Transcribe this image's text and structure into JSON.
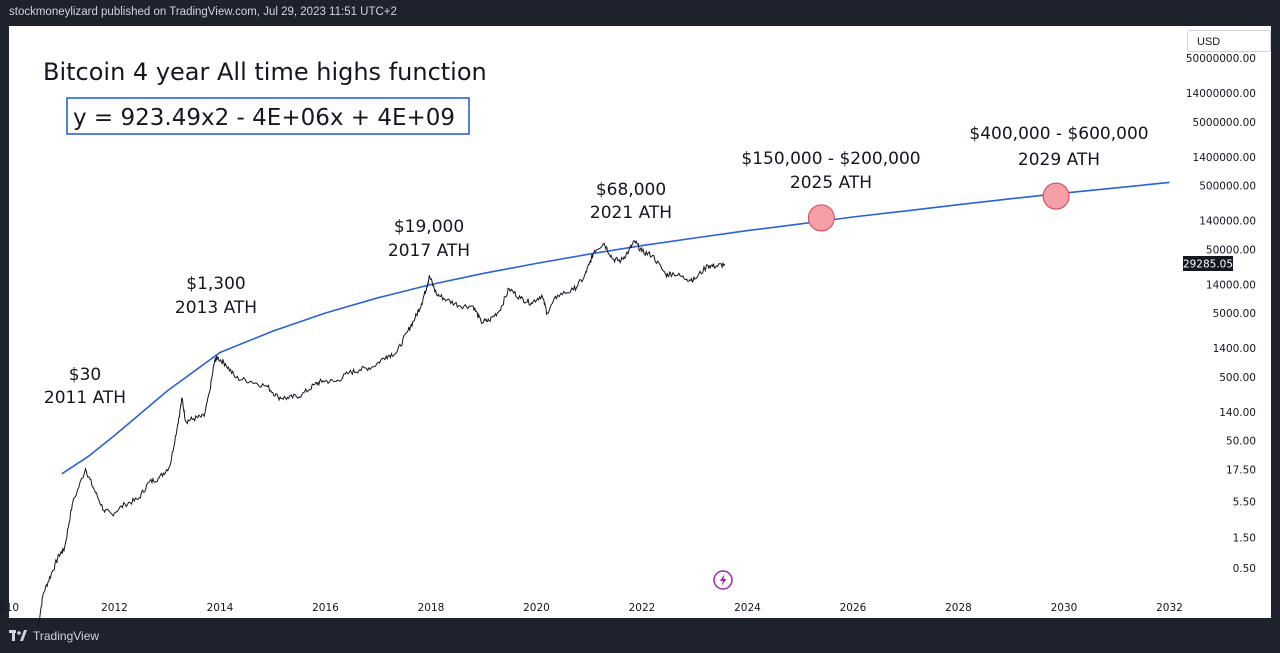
{
  "header": {
    "publisher_line": "stockmoneylizard published on TradingView.com, Jul 29, 2023 11:51 UTC+2"
  },
  "footer": {
    "brand": "TradingView"
  },
  "currency_selector": {
    "value": "USD"
  },
  "chart_data": {
    "type": "line",
    "title": "Bitcoin 4 year All time highs function",
    "equation": "y = 923.49x2 - 4E+06x + 4E+09",
    "y_scale": "log",
    "xlim": [
      2010,
      2032
    ],
    "x_tick_labels": [
      "010",
      "2012",
      "2014",
      "2016",
      "2018",
      "2020",
      "2022",
      "2024",
      "2026",
      "2028",
      "2030",
      "2032"
    ],
    "y_tick_labels": [
      "50000000.00",
      "14000000.00",
      "5000000.00",
      "1400000.00",
      "500000.00",
      "140000.00",
      "50000.00",
      "14000.00",
      "5000.00",
      "1400.00",
      "500.00",
      "140.00",
      "50.00",
      "17.50",
      "5.50",
      "1.50",
      "0.50"
    ],
    "y_tick_values": [
      50000000,
      14000000,
      5000000,
      1400000,
      500000,
      140000,
      50000,
      14000,
      5000,
      1400,
      500,
      140,
      50,
      17.5,
      5.5,
      1.5,
      0.5
    ],
    "last_price_label": "29285.05",
    "last_price": 29285.05,
    "grid": false,
    "series": [
      {
        "name": "",
        "color": "#2962d9",
        "x": [
          2011.0,
          2011.5,
          2012.0,
          2013.0,
          2014.0,
          2015.0,
          2016.0,
          2017.0,
          2018.0,
          2019.0,
          2020.0,
          2021.0,
          2022.0,
          2023.0,
          2024.0,
          2025.0,
          2026.0,
          2027.0,
          2028.0,
          2029.0,
          2030.0,
          2031.0,
          2032.0
        ],
        "values": [
          15,
          28,
          60,
          300,
          1200,
          2600,
          5000,
          8700,
          14000,
          21000,
          30000,
          42000,
          57000,
          75000,
          98000,
          125000,
          160000,
          200000,
          250000,
          310000,
          380000,
          460000,
          560000
        ]
      },
      {
        "name": "",
        "color": "#131722",
        "x": [
          2010.55,
          2010.65,
          2010.8,
          2010.95,
          2011.05,
          2011.2,
          2011.45,
          2011.6,
          2011.8,
          2011.95,
          2012.2,
          2012.45,
          2012.65,
          2012.85,
          2013.05,
          2013.2,
          2013.28,
          2013.35,
          2013.5,
          2013.7,
          2013.8,
          2013.9,
          2013.95,
          2014.1,
          2014.3,
          2014.6,
          2014.9,
          2015.1,
          2015.3,
          2015.55,
          2015.8,
          2015.95,
          2016.2,
          2016.45,
          2016.65,
          2016.9,
          2017.15,
          2017.35,
          2017.55,
          2017.7,
          2017.82,
          2017.92,
          2017.97,
          2018.1,
          2018.3,
          2018.55,
          2018.8,
          2018.95,
          2019.1,
          2019.3,
          2019.48,
          2019.7,
          2019.9,
          2020.1,
          2020.2,
          2020.4,
          2020.7,
          2020.9,
          2021.0,
          2021.1,
          2021.28,
          2021.45,
          2021.6,
          2021.75,
          2021.86,
          2022.0,
          2022.2,
          2022.45,
          2022.6,
          2022.85,
          2023.0,
          2023.25,
          2023.4,
          2023.57
        ],
        "values": [
          0.06,
          0.2,
          0.4,
          0.8,
          1.0,
          5,
          18,
          9,
          4,
          3.5,
          5,
          6,
          11,
          13,
          20,
          90,
          230,
          100,
          110,
          120,
          280,
          900,
          1000,
          800,
          480,
          420,
          350,
          240,
          230,
          260,
          380,
          430,
          420,
          580,
          640,
          720,
          1050,
          1200,
          2500,
          4200,
          7000,
          13000,
          19000,
          10000,
          8000,
          6500,
          6400,
          3600,
          3800,
          5500,
          12000,
          8500,
          7200,
          9500,
          5000,
          9500,
          11500,
          18000,
          29000,
          48000,
          62000,
          35000,
          33000,
          47000,
          67000,
          46000,
          40000,
          20000,
          21000,
          17000,
          17000,
          28000,
          27000,
          29285.05
        ]
      }
    ],
    "annotations": [
      {
        "label_price": "$30",
        "label_year": "2011 ATH"
      },
      {
        "label_price": "$1,300",
        "label_year": "2013 ATH"
      },
      {
        "label_price": "$19,000",
        "label_year": "2017 ATH"
      },
      {
        "label_price": "$68,000",
        "label_year": "2021 ATH"
      },
      {
        "label_price": "$150,000 - $200,000",
        "label_year": "2025 ATH",
        "marker_x": 2025.4,
        "marker_y": 155000,
        "marker_color": "#f59fa6"
      },
      {
        "label_price": "$400,000 - $600,000",
        "label_year": "2029 ATH",
        "marker_x": 2029.85,
        "marker_y": 340000,
        "marker_color": "#f59fa6"
      }
    ]
  }
}
